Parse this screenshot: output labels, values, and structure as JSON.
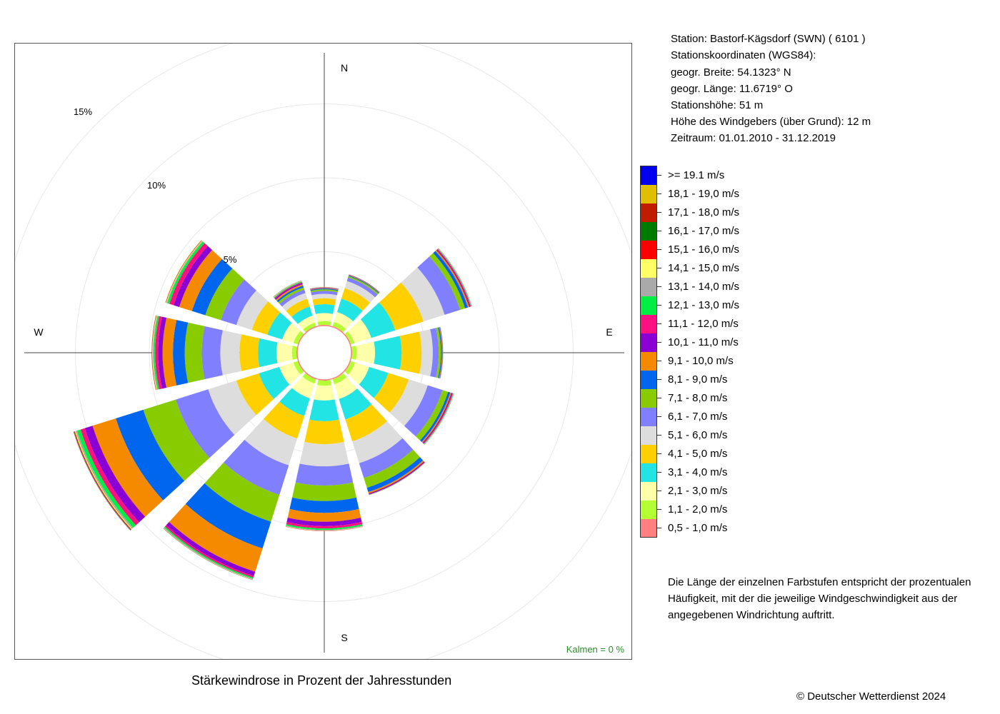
{
  "station_info": {
    "station": "Station:  Bastorf-Kägsdorf (SWN)  ( 6101 )",
    "coords_heading": "Stationskoordinaten (WGS84):",
    "latitude": "geogr. Breite: 54.1323° N",
    "longitude": "geogr. Länge: 11.6719° O",
    "elevation": "Stationshöhe: 51 m",
    "anemometer_height": "Höhe des Windgebers (über Grund): 12 m",
    "period": "Zeitraum: 01.01.2010 - 31.12.2019"
  },
  "legend": [
    {
      "label": ">= 19.1 m/s",
      "color": "#0000ee"
    },
    {
      "label": "18,1 - 19,0 m/s",
      "color": "#e0be00"
    },
    {
      "label": "17,1 - 18,0 m/s",
      "color": "#c01c00"
    },
    {
      "label": "16,1 - 17,0 m/s",
      "color": "#007a00"
    },
    {
      "label": "15,1 - 16,0 m/s",
      "color": "#ff0000"
    },
    {
      "label": "14,1 - 15,0 m/s",
      "color": "#ffff66"
    },
    {
      "label": "13,1 - 14,0 m/s",
      "color": "#aaaaaa"
    },
    {
      "label": "12,1 - 13,0 m/s",
      "color": "#00ee44"
    },
    {
      "label": "11,1 - 12,0 m/s",
      "color": "#ff1080"
    },
    {
      "label": "10,1 - 11,0 m/s",
      "color": "#8a00d4"
    },
    {
      "label": "9,1 - 10,0 m/s",
      "color": "#f58a00"
    },
    {
      "label": "8,1 - 9,0 m/s",
      "color": "#0066ee"
    },
    {
      "label": "7,1 - 8,0 m/s",
      "color": "#88cc00"
    },
    {
      "label": "6,1 - 7,0 m/s",
      "color": "#8080ff"
    },
    {
      "label": "5,1 - 6,0 m/s",
      "color": "#dddddd"
    },
    {
      "label": "4,1 - 5,0 m/s",
      "color": "#ffd000"
    },
    {
      "label": "3,1 - 4,0 m/s",
      "color": "#22e4e4"
    },
    {
      "label": "2,1 - 3,0 m/s",
      "color": "#ffffaa"
    },
    {
      "label": "1,1 - 2,0 m/s",
      "color": "#b4ff33"
    },
    {
      "label": "0,5 - 1,0 m/s",
      "color": "#ff8080"
    }
  ],
  "note": "Die Länge der einzelnen Farbstufen entspricht der prozentualen Häufigkeit, mit der die jeweilige Windgeschwindigkeit aus der angegebenen Windrichtung auftritt.",
  "calm_label": "Kalmen  =  0 %",
  "chart_title": "Stärkewindrose in Prozent der Jahresstunden",
  "copyright": "© Deutscher Wetterdienst  2024",
  "chart_data": {
    "type": "windrose",
    "title": "Stärkewindrose in Prozent der Jahresstunden",
    "unit": "%",
    "compass_labels": {
      "N": "N",
      "E": "E",
      "S": "S",
      "W": "W"
    },
    "ring_labels": [
      "5%",
      "10%",
      "15%"
    ],
    "rings": [
      5,
      10,
      15,
      20
    ],
    "calm_percent": 0,
    "speed_classes": [
      "0,5 - 1,0 m/s",
      "1,1 - 2,0 m/s",
      "2,1 - 3,0 m/s",
      "3,1 - 4,0 m/s",
      "4,1 - 5,0 m/s",
      "5,1 - 6,0 m/s",
      "6,1 - 7,0 m/s",
      "7,1 - 8,0 m/s",
      "8,1 - 9,0 m/s",
      "9,1 - 10,0 m/s",
      "10,1 - 11,0 m/s",
      "11,1 - 12,0 m/s",
      "12,1 - 13,0 m/s",
      "13,1 - 14,0 m/s",
      "14,1 - 15,0 m/s",
      "15,1 - 16,0 m/s",
      "16,1 - 17,0 m/s",
      "17,1 - 18,0 m/s",
      "18,1 - 19,0 m/s",
      ">= 19.1 m/s"
    ],
    "sector_directions_deg": [
      0,
      30,
      60,
      90,
      120,
      150,
      180,
      210,
      240,
      270,
      300,
      330
    ],
    "series": [
      {
        "direction_deg": 0,
        "values": [
          0.05,
          0.25,
          0.55,
          0.6,
          0.4,
          0.3,
          0.2,
          0.1,
          0.06,
          0.04,
          0.02,
          0.02,
          0.01,
          0.01,
          0.01,
          0,
          0,
          0,
          0,
          0
        ]
      },
      {
        "direction_deg": 30,
        "values": [
          0.05,
          0.3,
          0.7,
          0.95,
          0.75,
          0.5,
          0.25,
          0.1,
          0.05,
          0.03,
          0.02,
          0.01,
          0.01,
          0.01,
          0,
          0,
          0,
          0,
          0,
          0
        ]
      },
      {
        "direction_deg": 60,
        "values": [
          0.05,
          0.25,
          1.2,
          1.7,
          2.0,
          1.5,
          1.1,
          0.35,
          0.2,
          0.1,
          0.06,
          0.05,
          0.04,
          0.02,
          0.01,
          0.01,
          0,
          0,
          0,
          0
        ]
      },
      {
        "direction_deg": 90,
        "values": [
          0.05,
          0.3,
          1.25,
          1.8,
          1.35,
          0.75,
          0.4,
          0.15,
          0.07,
          0.04,
          0.02,
          0.01,
          0.01,
          0.01,
          0,
          0,
          0,
          0,
          0,
          0
        ]
      },
      {
        "direction_deg": 120,
        "values": [
          0.05,
          0.3,
          1.0,
          1.35,
          1.45,
          1.35,
          1.05,
          0.4,
          0.15,
          0.08,
          0.06,
          0.05,
          0.04,
          0.02,
          0.01,
          0.01,
          0,
          0,
          0,
          0
        ]
      },
      {
        "direction_deg": 150,
        "values": [
          0.05,
          0.35,
          1.05,
          1.45,
          1.55,
          1.55,
          1.05,
          0.7,
          0.3,
          0.1,
          0.06,
          0.03,
          0.02,
          0.01,
          0.01,
          0,
          0,
          0,
          0,
          0
        ]
      },
      {
        "direction_deg": 180,
        "values": [
          0.05,
          0.35,
          1.0,
          1.4,
          1.55,
          1.5,
          1.3,
          1.05,
          0.8,
          0.6,
          0.3,
          0.15,
          0.1,
          0.05,
          0.02,
          0.01,
          0,
          0,
          0,
          0
        ]
      },
      {
        "direction_deg": 210,
        "values": [
          0.05,
          0.3,
          1.05,
          1.25,
          1.6,
          1.9,
          2.1,
          1.9,
          1.9,
          1.65,
          0.3,
          0.12,
          0.08,
          0.05,
          0.02,
          0.01,
          0.01,
          0,
          0,
          0
        ]
      },
      {
        "direction_deg": 240,
        "values": [
          0.05,
          0.3,
          1.0,
          1.45,
          1.6,
          2.0,
          2.3,
          2.3,
          1.95,
          1.65,
          0.55,
          0.3,
          0.25,
          0.1,
          0.06,
          0.04,
          0.02,
          0.02,
          0.01,
          0.01
        ]
      },
      {
        "direction_deg": 270,
        "values": [
          0.05,
          0.3,
          1.05,
          1.25,
          1.25,
          1.3,
          1.25,
          1.15,
          0.8,
          0.7,
          0.3,
          0.2,
          0.1,
          0.06,
          0.04,
          0.02,
          0.01,
          0.01,
          0,
          0
        ]
      },
      {
        "direction_deg": 300,
        "values": [
          0.05,
          0.3,
          0.8,
          1.05,
          1.1,
          1.1,
          1.1,
          1.1,
          0.95,
          0.9,
          0.4,
          0.3,
          0.15,
          0.05,
          0.04,
          0.02,
          0.01,
          0.01,
          0.01,
          0
        ]
      },
      {
        "direction_deg": 330,
        "values": [
          0.05,
          0.25,
          0.5,
          0.65,
          0.55,
          0.4,
          0.25,
          0.15,
          0.12,
          0.1,
          0.08,
          0.06,
          0.05,
          0.03,
          0.02,
          0.01,
          0.01,
          0,
          0,
          0
        ]
      }
    ],
    "grid": true
  }
}
